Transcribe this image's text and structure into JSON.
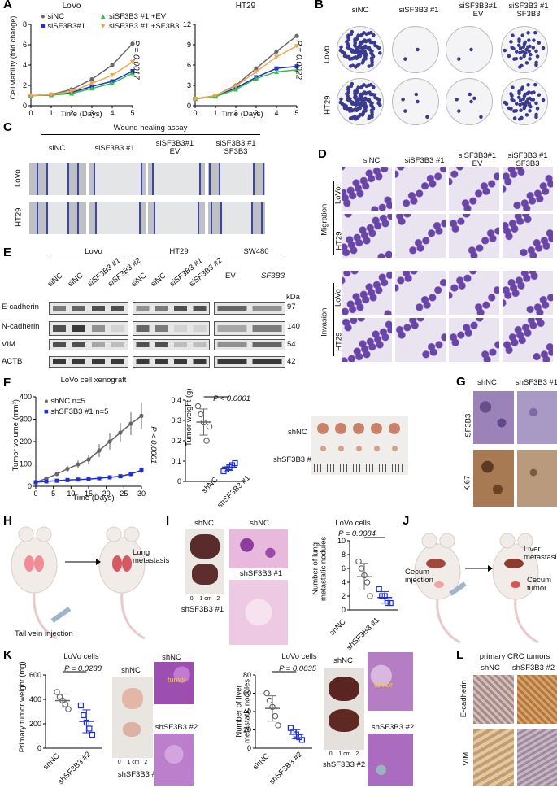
{
  "panels": [
    "A",
    "B",
    "C",
    "D",
    "E",
    "F",
    "G",
    "H",
    "I",
    "J",
    "K",
    "L"
  ],
  "panelA": {
    "lovo": {
      "title": "LoVo",
      "ylabel": "Cell viability (fold change)",
      "xlabel": "Time (Days)",
      "pval": "P = 0.0017",
      "legend": [
        "siNC",
        "siSF3B3#1",
        "siSF3B3 #1 +EV",
        "siSF3B3 #1 +SF3B3"
      ]
    },
    "ht29": {
      "title": "HT29",
      "xlabel": "Time (Days)",
      "pval": "P = 0.0022"
    }
  },
  "panelB": {
    "cols": [
      "siNC",
      "siSF3B3 #1",
      "siSF3B3#1\nEV",
      "siSF3B3 #1\nSF3B3"
    ],
    "rows": [
      "LoVo",
      "HT29"
    ]
  },
  "panelC": {
    "title": "Wound healing assay",
    "cols": [
      "siNC",
      "siSF3B3 #1",
      "siSF3B3#1\nEV",
      "siSF3B3 #1\nSF3B3"
    ],
    "rows": [
      "LoVo",
      "HT29"
    ]
  },
  "panelD": {
    "cols": [
      "siNC",
      "siSF3B3 #1",
      "siSF3B3#1\nEV",
      "siSF3B3 #1\nSF3B3"
    ],
    "groups": [
      "Migration",
      "Invasion"
    ],
    "rows": [
      "LoVo",
      "HT29"
    ]
  },
  "panelE": {
    "groups": [
      "LoVo",
      "HT29",
      "SW480"
    ],
    "lanes_lovo": [
      "siNC",
      "siNC",
      "siSF3B3 #1",
      "siSF3B3 #2"
    ],
    "lanes_ht29": [
      "siNC",
      "siNC",
      "siSF3B3 #1",
      "siSF3B3 #2"
    ],
    "lanes_sw480": [
      "EV",
      "SF3B3"
    ],
    "proteins": [
      "E-cadherin",
      "N-cadherin",
      "VIM",
      "ACTB"
    ],
    "kda_label": "kDa",
    "kda": [
      "97",
      "140",
      "54",
      "42"
    ]
  },
  "panelF": {
    "title": "LoVo cell xenograft",
    "ylabel": "Tumor volume (mm³)",
    "xlabel": "Time (Days)",
    "legend": [
      "shNC   n=5",
      "shSF3B3 #1  n=5"
    ],
    "pval": "P < 0.0001",
    "weight_ylabel": "Tumor weight (g)",
    "weight_pval": "P < 0.0001",
    "weight_cats": [
      "shNC",
      "shSF3B3 #1"
    ],
    "photo_rows": [
      "shNC",
      "shSF3B3 #1"
    ]
  },
  "panelG": {
    "cols": [
      "shNC",
      "shSF3B3 #1"
    ],
    "rows": [
      "SF3B3",
      "Ki67"
    ]
  },
  "panelH": {
    "label_lung": "Lung\nmetastasis",
    "label_tail": "Tail vein injection"
  },
  "panelI": {
    "photo_labels": [
      "shNC",
      "shSF3B3 #1"
    ],
    "he_labels": [
      "shNC",
      "shSF3B3 #1"
    ],
    "ruler": "0    1 cm   2",
    "title": "LoVo cells",
    "pval": "P = 0.0084",
    "ylabel": "Number of lung\nmetastatic nodules",
    "cats": [
      "shNC",
      "shSF3B3 #1"
    ]
  },
  "panelJ": {
    "label_cecum_inj": "Cecum\ninjection",
    "label_liver": "Liver\nmetastasis",
    "label_cecum_tumor": "Cecum\ntumor"
  },
  "panelK": {
    "title1": "LoVo cells",
    "pval1": "P = 0.0238",
    "ylabel1": "Primary tumor weight (mg)",
    "cats1": [
      "shNC",
      "shSF3B3 #2"
    ],
    "photo_labels1": [
      "shNC",
      "shSF3B3 #2"
    ],
    "ruler": "0    1 cm   2",
    "tumor_label": "tumor",
    "title2": "LoVo cells",
    "pval2": "P = 0.0035",
    "ylabel2": "Number of liver\nmetastatic nodules",
    "cats2": [
      "shNC",
      "shSF3B3 #2"
    ],
    "photo_labels2": [
      "shNC",
      "shSF3B3 #2"
    ]
  },
  "panelL": {
    "title": "primary CRC tumors",
    "cols": [
      "shNC",
      "shSF3B3 #2"
    ],
    "rows": [
      "E-cadherin",
      "VIM"
    ]
  },
  "chart_data": [
    {
      "id": "A-LoVo",
      "type": "line",
      "title": "LoVo",
      "xlabel": "Time (Days)",
      "ylabel": "Cell viability (fold change)",
      "x": [
        0,
        1,
        2,
        3,
        4,
        5
      ],
      "ylim": [
        0,
        8
      ],
      "series": [
        {
          "name": "siNC",
          "color": "#666666",
          "values": [
            1.0,
            1.1,
            1.6,
            2.6,
            4.0,
            6.1
          ]
        },
        {
          "name": "siSF3B3#1",
          "color": "#1f2fd6",
          "values": [
            1.0,
            1.05,
            1.3,
            1.9,
            2.4,
            3.4
          ]
        },
        {
          "name": "siSF3B3 #1 +EV",
          "color": "#2fc24a",
          "values": [
            1.0,
            1.05,
            1.2,
            1.7,
            2.2,
            3.2
          ]
        },
        {
          "name": "siSF3B3 #1 +SF3B3",
          "color": "#f5a64a",
          "values": [
            1.0,
            1.1,
            1.4,
            2.2,
            3.0,
            4.3
          ]
        }
      ]
    },
    {
      "id": "A-HT29",
      "type": "line",
      "title": "HT29",
      "xlabel": "Time (Days)",
      "ylabel": "",
      "x": [
        0,
        1,
        2,
        3,
        4,
        5
      ],
      "ylim": [
        0,
        12
      ],
      "series": [
        {
          "name": "siNC",
          "color": "#666666",
          "values": [
            1.0,
            1.5,
            3.0,
            5.5,
            8.0,
            10.3
          ]
        },
        {
          "name": "siSF3B3#1",
          "color": "#1f2fd6",
          "values": [
            1.0,
            1.4,
            2.6,
            4.2,
            5.5,
            5.8
          ]
        },
        {
          "name": "siSF3B3 #1 +EV",
          "color": "#2fc24a",
          "values": [
            1.0,
            1.35,
            2.4,
            4.0,
            5.0,
            5.3
          ]
        },
        {
          "name": "siSF3B3 #1 +SF3B3",
          "color": "#f5a64a",
          "values": [
            1.0,
            1.5,
            2.9,
            5.0,
            7.2,
            8.8
          ]
        }
      ]
    },
    {
      "id": "F-volume",
      "type": "line",
      "title": "LoVo cell xenograft",
      "xlabel": "Time (Days)",
      "ylabel": "Tumor volume (mm³)",
      "x": [
        0,
        3,
        6,
        9,
        12,
        15,
        18,
        21,
        24,
        27,
        30
      ],
      "ylim": [
        0,
        400
      ],
      "series": [
        {
          "name": "shNC n=5",
          "color": "#666666",
          "values": [
            18,
            35,
            55,
            78,
            98,
            120,
            160,
            200,
            240,
            280,
            315
          ]
        },
        {
          "name": "shSF3B3 #1 n=5",
          "color": "#1f2fd6",
          "values": [
            18,
            22,
            25,
            28,
            30,
            32,
            36,
            40,
            45,
            55,
            72
          ]
        }
      ]
    },
    {
      "id": "F-weight",
      "type": "scatter",
      "ylabel": "Tumor weight (g)",
      "categories": [
        "shNC",
        "shSF3B3 #1"
      ],
      "ylim": [
        0,
        0.4
      ],
      "series": [
        {
          "name": "shNC",
          "values": [
            0.37,
            0.33,
            0.29,
            0.2,
            0.27
          ]
        },
        {
          "name": "shSF3B3 #1",
          "values": [
            0.05,
            0.06,
            0.07,
            0.08,
            0.09
          ]
        }
      ]
    },
    {
      "id": "I-nodules",
      "type": "scatter",
      "title": "LoVo cells",
      "ylabel": "Number of lung metastatic nodules",
      "categories": [
        "shNC",
        "shSF3B3 #1"
      ],
      "ylim": [
        0,
        10
      ],
      "series": [
        {
          "name": "shNC",
          "values": [
            7,
            6,
            5,
            4,
            2
          ]
        },
        {
          "name": "shSF3B3 #1",
          "values": [
            3,
            2,
            2,
            1,
            1
          ]
        }
      ]
    },
    {
      "id": "K-primary",
      "type": "scatter",
      "title": "LoVo cells",
      "ylabel": "Primary tumor weight (mg)",
      "categories": [
        "shNC",
        "shSF3B3 #2"
      ],
      "ylim": [
        0,
        600
      ],
      "series": [
        {
          "name": "shNC",
          "values": [
            460,
            420,
            390,
            360,
            320
          ]
        },
        {
          "name": "shSF3B3 #2",
          "values": [
            350,
            270,
            210,
            160,
            110
          ]
        }
      ]
    },
    {
      "id": "K-liver",
      "type": "scatter",
      "title": "LoVo cells",
      "ylabel": "Number of liver metastatic nodules",
      "categories": [
        "shNC",
        "shSF3B3 #2"
      ],
      "ylim": [
        0,
        80
      ],
      "series": [
        {
          "name": "shNC",
          "values": [
            60,
            52,
            45,
            35,
            25
          ]
        },
        {
          "name": "shSF3B3 #2",
          "values": [
            22,
            18,
            15,
            12,
            9
          ]
        }
      ]
    }
  ]
}
